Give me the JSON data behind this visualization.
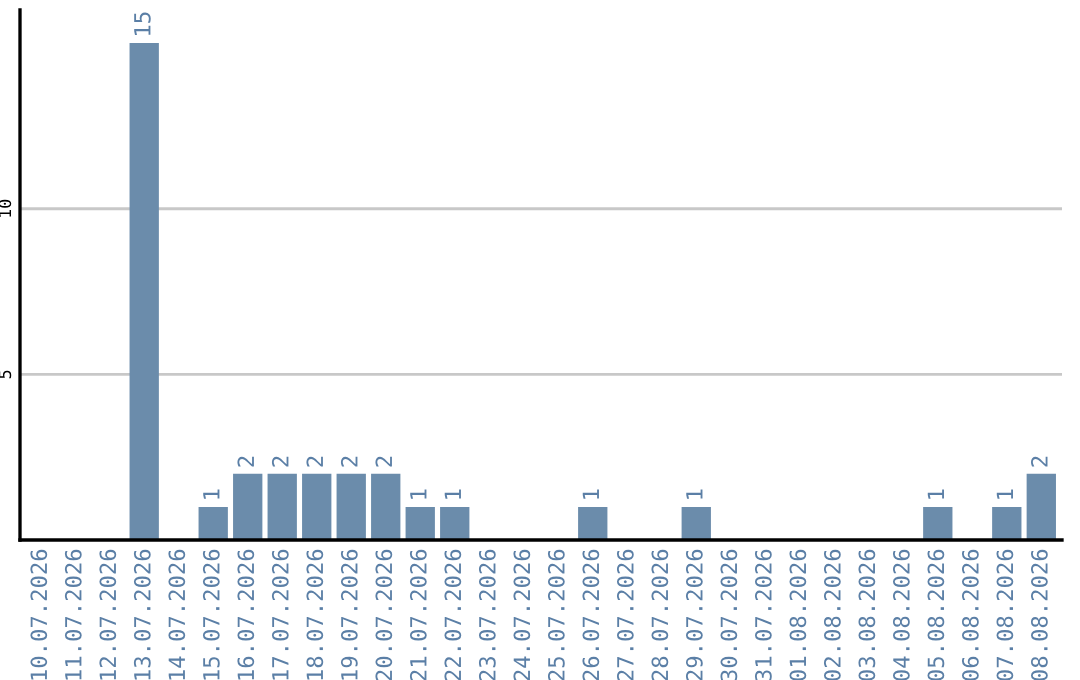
{
  "chart_data": {
    "type": "bar",
    "categories": [
      "10.07.2026",
      "11.07.2026",
      "12.07.2026",
      "13.07.2026",
      "14.07.2026",
      "15.07.2026",
      "16.07.2026",
      "17.07.2026",
      "18.07.2026",
      "19.07.2026",
      "20.07.2026",
      "21.07.2026",
      "22.07.2026",
      "23.07.2026",
      "24.07.2026",
      "25.07.2026",
      "26.07.2026",
      "27.07.2026",
      "28.07.2026",
      "29.07.2026",
      "30.07.2026",
      "31.07.2026",
      "01.08.2026",
      "02.08.2026",
      "03.08.2026",
      "04.08.2026",
      "05.08.2026",
      "06.08.2026",
      "07.08.2026",
      "08.08.2026"
    ],
    "values": [
      0,
      0,
      0,
      15,
      0,
      1,
      2,
      2,
      2,
      2,
      2,
      1,
      1,
      0,
      0,
      0,
      1,
      0,
      0,
      1,
      0,
      0,
      0,
      0,
      0,
      0,
      1,
      0,
      1,
      2
    ],
    "value_labels": [
      null,
      null,
      null,
      "15",
      null,
      "1",
      "2",
      "2",
      "2",
      "2",
      "2",
      "1",
      "1",
      null,
      null,
      null,
      "1",
      null,
      null,
      "1",
      null,
      null,
      null,
      null,
      null,
      null,
      "1",
      null,
      "1",
      "2"
    ],
    "color": "#6b8cab",
    "ylim": [
      0,
      16
    ],
    "yticks": [
      5,
      10
    ],
    "grid": "y",
    "legend": false
  }
}
